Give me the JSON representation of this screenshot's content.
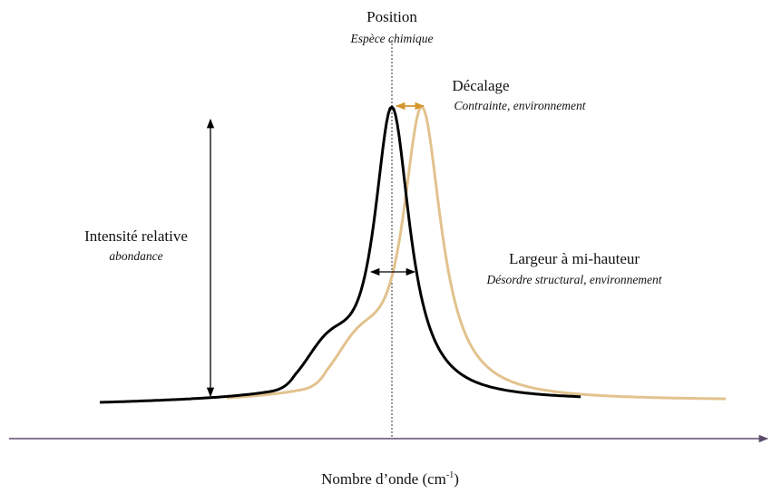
{
  "position": {
    "title": "Position",
    "subtitle": "Espèce chimique"
  },
  "shift": {
    "title": "Décalage",
    "subtitle": "Contrainte, environnement"
  },
  "intensity": {
    "title": "Intensité relative",
    "subtitle": "abondance"
  },
  "width": {
    "title": "Largeur à mi-hauteur",
    "subtitle": "Désordre structural, environnement"
  },
  "axis_label": {
    "text": "Nombre d’onde (cm",
    "superscript": "-1",
    "suffix": ")"
  }
}
